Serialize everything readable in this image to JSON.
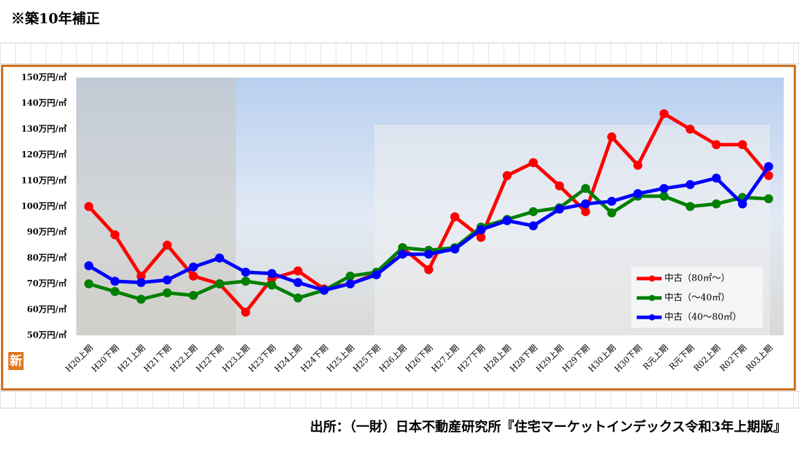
{
  "chart_data": {
    "type": "line",
    "title": "※築10年補正",
    "badge": "新",
    "source": "出所：（一財）日本不動産研究所『住宅マーケットインデックス令和3年上期版』",
    "categories": [
      "H20上期",
      "H20下期",
      "H21上期",
      "H21下期",
      "H22上期",
      "H22下期",
      "H23上期",
      "H23下期",
      "H24上期",
      "H24下期",
      "H25上期",
      "H25下期",
      "H26上期",
      "H26下期",
      "H27上期",
      "H27下期",
      "H28上期",
      "H28下期",
      "H29上期",
      "H29下期",
      "H30上期",
      "H30下期",
      "R元上期",
      "R元下期",
      "R02上期",
      "R02下期",
      "R03上期"
    ],
    "series": [
      {
        "name": "中古（80㎡～）",
        "color": "#ff0000",
        "values": [
          100,
          89,
          73,
          85,
          73,
          70,
          59,
          72,
          75,
          68,
          70,
          74,
          84,
          75.5,
          96,
          88,
          112,
          117,
          108,
          98,
          127,
          116,
          136,
          130,
          124,
          124,
          112
        ]
      },
      {
        "name": "中古（～40㎡）",
        "color": "#008000",
        "values": [
          70,
          67,
          64,
          66.5,
          65.5,
          70,
          71,
          69.5,
          64.5,
          67.5,
          73,
          74.5,
          84,
          83,
          84,
          92,
          95,
          98,
          99.5,
          107,
          97.5,
          104,
          104,
          100,
          101,
          103.5,
          103
        ]
      },
      {
        "name": "中古（40～80㎡）",
        "color": "#0000ff",
        "values": [
          77,
          71,
          70.5,
          71.5,
          76.5,
          80,
          74.5,
          74,
          70.5,
          67.5,
          70,
          73.5,
          81.5,
          81.5,
          83.5,
          91,
          94.5,
          92.5,
          99,
          101,
          102,
          105,
          107,
          108.5,
          111,
          101,
          115.5
        ]
      }
    ],
    "ylim": [
      50,
      150
    ],
    "yticks": [
      {
        "value": 50,
        "label": "50万円/㎡"
      },
      {
        "value": 60,
        "label": "60万円/㎡"
      },
      {
        "value": 70,
        "label": "70万円/㎡"
      },
      {
        "value": 80,
        "label": "80万円/㎡"
      },
      {
        "value": 90,
        "label": "90万円/㎡"
      },
      {
        "value": 100,
        "label": "100万円/㎡"
      },
      {
        "value": 110,
        "label": "110万円/㎡"
      },
      {
        "value": 120,
        "label": "120万円/㎡"
      },
      {
        "value": 130,
        "label": "130万円/㎡"
      },
      {
        "value": 140,
        "label": "140万円/㎡"
      },
      {
        "value": 150,
        "label": "150万円/㎡"
      }
    ],
    "legend": "lower right"
  }
}
